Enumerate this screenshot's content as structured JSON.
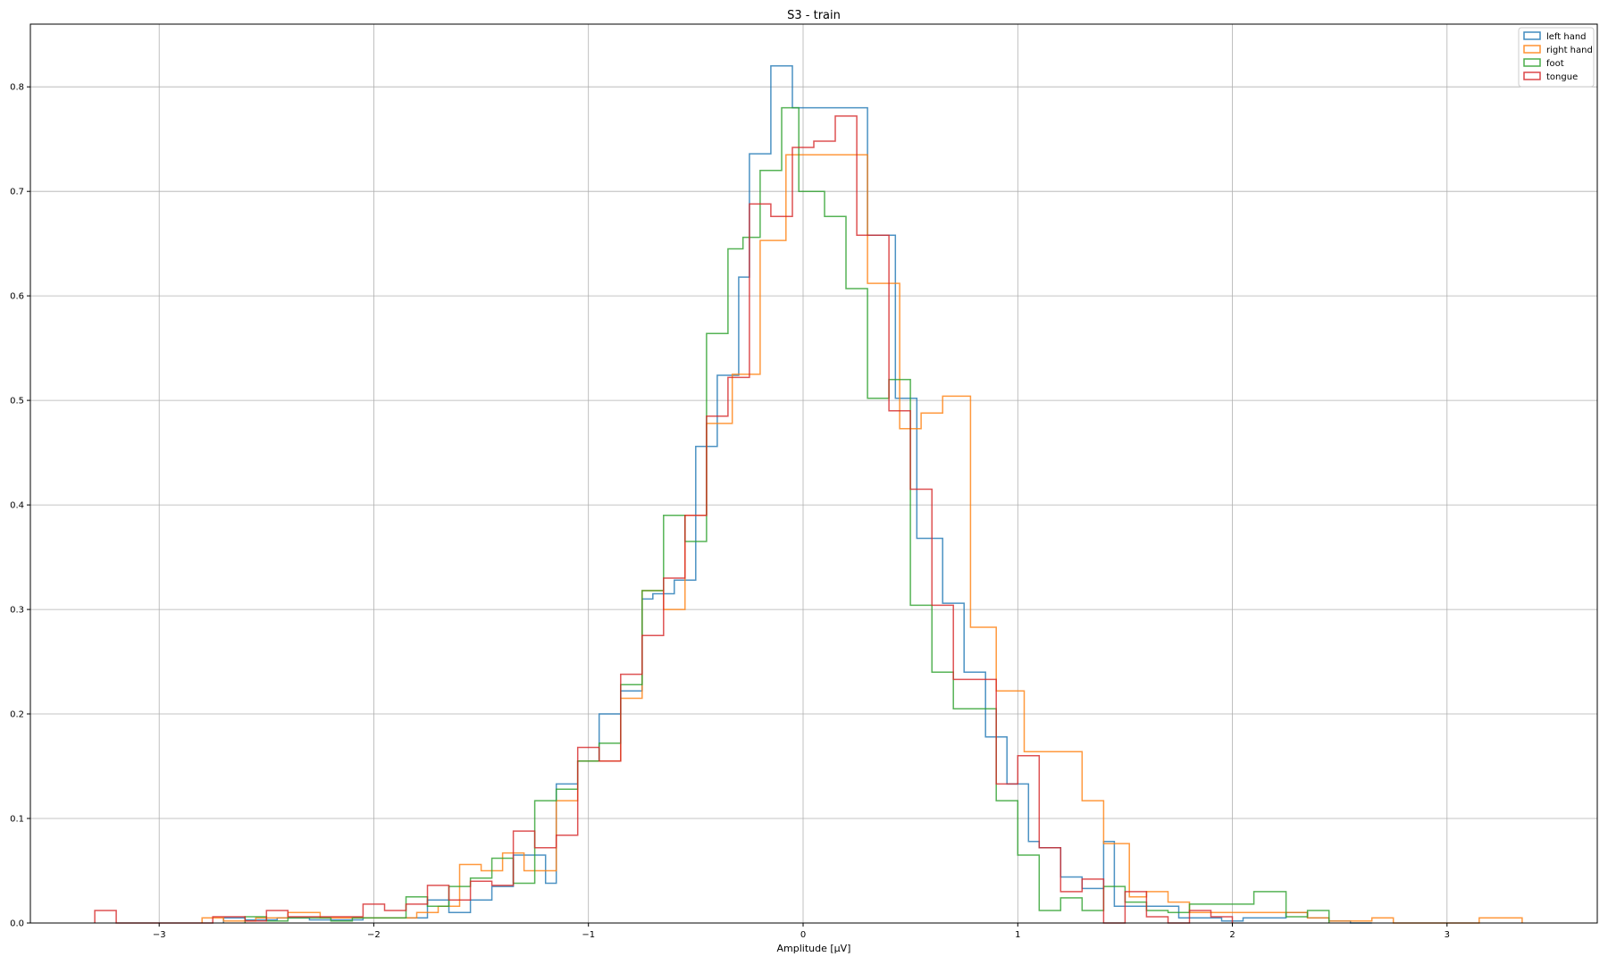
{
  "chart_data": {
    "type": "histogram",
    "title": "S3 - train",
    "xlabel": "Amplitude [μV]",
    "ylabel": "",
    "xlim": [
      -3.6,
      3.7
    ],
    "ylim": [
      0,
      0.86
    ],
    "xticks": [
      -3,
      -2,
      -1,
      0,
      1,
      2,
      3
    ],
    "xtick_labels": [
      "−3",
      "−2",
      "−1",
      "0",
      "1",
      "2",
      "3"
    ],
    "yticks": [
      0.0,
      0.1,
      0.2,
      0.3,
      0.4,
      0.5,
      0.6,
      0.7,
      0.8
    ],
    "ytick_labels": [
      "0.0",
      "0.1",
      "0.2",
      "0.3",
      "0.4",
      "0.5",
      "0.6",
      "0.7",
      "0.8"
    ],
    "grid": true,
    "legend_position": "top-right",
    "series": [
      {
        "name": "left hand",
        "color": "#1f77b4",
        "edges": [
          -2.7,
          -2.6,
          -2.45,
          -2.3,
          -2.2,
          -2.05,
          -1.9,
          -1.75,
          -1.65,
          -1.55,
          -1.45,
          -1.35,
          -1.3,
          -1.2,
          -1.15,
          -1.05,
          -0.95,
          -0.85,
          -0.75,
          -0.7,
          -0.6,
          -0.5,
          -0.4,
          -0.3,
          -0.25,
          -0.15,
          -0.05,
          0.08,
          0.3,
          0.43,
          0.53,
          0.65,
          0.75,
          0.85,
          0.95,
          1.05,
          1.1,
          1.2,
          1.3,
          1.4,
          1.45,
          1.55,
          1.65,
          1.75,
          1.85,
          1.95,
          2.05,
          2.15,
          2.25,
          2.35,
          2.45,
          2.55,
          2.65
        ],
        "values": [
          0.005,
          0.003,
          0.005,
          0.003,
          0.003,
          0.005,
          0.005,
          0.022,
          0.01,
          0.022,
          0.035,
          0.065,
          0.065,
          0.038,
          0.133,
          0.155,
          0.2,
          0.222,
          0.31,
          0.315,
          0.328,
          0.456,
          0.524,
          0.618,
          0.736,
          0.82,
          0.78,
          0.78,
          0.658,
          0.502,
          0.368,
          0.306,
          0.24,
          0.178,
          0.133,
          0.078,
          0.072,
          0.044,
          0.033,
          0.078,
          0.016,
          0.016,
          0.016,
          0.005,
          0.005,
          0.002,
          0.005,
          0.005,
          0.01,
          0.005,
          0.002,
          0.0
        ]
      },
      {
        "name": "right hand",
        "color": "#ff7f0e",
        "edges": [
          -2.8,
          -2.7,
          -2.55,
          -2.4,
          -2.25,
          -2.1,
          -1.95,
          -1.8,
          -1.7,
          -1.6,
          -1.5,
          -1.4,
          -1.3,
          -1.15,
          -1.05,
          -0.95,
          -0.85,
          -0.75,
          -0.65,
          -0.55,
          -0.45,
          -0.33,
          -0.2,
          -0.08,
          0.03,
          0.3,
          0.45,
          0.55,
          0.65,
          0.78,
          0.9,
          1.03,
          1.3,
          1.4,
          1.52,
          1.6,
          1.7,
          1.8,
          1.92,
          2.02,
          2.35,
          2.45,
          2.65,
          2.75,
          3.15,
          3.35
        ],
        "values": [
          0.005,
          0.002,
          0.005,
          0.01,
          0.005,
          0.005,
          0.005,
          0.01,
          0.016,
          0.056,
          0.05,
          0.067,
          0.05,
          0.117,
          0.155,
          0.155,
          0.215,
          0.318,
          0.3,
          0.39,
          0.478,
          0.525,
          0.653,
          0.735,
          0.735,
          0.612,
          0.473,
          0.488,
          0.504,
          0.283,
          0.222,
          0.164,
          0.117,
          0.076,
          0.025,
          0.03,
          0.02,
          0.01,
          0.01,
          0.01,
          0.005,
          0.002,
          0.005,
          0.0,
          0.005
        ]
      },
      {
        "name": "foot",
        "color": "#2ca02c",
        "edges": [
          -2.6,
          -2.5,
          -2.4,
          -2.2,
          -2.1,
          -1.95,
          -1.85,
          -1.75,
          -1.65,
          -1.55,
          -1.45,
          -1.35,
          -1.25,
          -1.15,
          -1.05,
          -0.95,
          -0.85,
          -0.75,
          -0.65,
          -0.55,
          -0.45,
          -0.35,
          -0.28,
          -0.2,
          -0.1,
          -0.02,
          0.1,
          0.2,
          0.3,
          0.4,
          0.5,
          0.6,
          0.7,
          0.8,
          0.9,
          1.0,
          1.1,
          1.2,
          1.3,
          1.4,
          1.5,
          1.6,
          1.7,
          1.8,
          1.9,
          2.1,
          2.25,
          2.35,
          2.45
        ],
        "values": [
          0.006,
          0.002,
          0.005,
          0.002,
          0.005,
          0.005,
          0.025,
          0.016,
          0.035,
          0.043,
          0.062,
          0.038,
          0.117,
          0.128,
          0.155,
          0.172,
          0.228,
          0.318,
          0.39,
          0.365,
          0.564,
          0.645,
          0.656,
          0.72,
          0.78,
          0.7,
          0.676,
          0.607,
          0.502,
          0.52,
          0.304,
          0.24,
          0.205,
          0.205,
          0.117,
          0.065,
          0.012,
          0.024,
          0.012,
          0.035,
          0.02,
          0.012,
          0.01,
          0.018,
          0.018,
          0.03,
          0.006,
          0.012
        ]
      },
      {
        "name": "tongue",
        "color": "#d62728",
        "edges": [
          -3.3,
          -3.2,
          -2.9,
          -2.75,
          -2.6,
          -2.5,
          -2.4,
          -2.3,
          -2.15,
          -2.05,
          -1.95,
          -1.85,
          -1.75,
          -1.65,
          -1.55,
          -1.45,
          -1.35,
          -1.25,
          -1.15,
          -1.05,
          -0.95,
          -0.85,
          -0.75,
          -0.65,
          -0.55,
          -0.45,
          -0.35,
          -0.25,
          -0.15,
          -0.05,
          0.05,
          0.15,
          0.25,
          0.4,
          0.5,
          0.6,
          0.7,
          0.8,
          0.9,
          1.0,
          1.1,
          1.2,
          1.3,
          1.4,
          1.5,
          1.6,
          1.7,
          1.8,
          1.9,
          2.0
        ],
        "values": [
          0.012,
          0.0,
          0.0,
          0.006,
          0.002,
          0.012,
          0.006,
          0.006,
          0.006,
          0.018,
          0.012,
          0.018,
          0.036,
          0.022,
          0.04,
          0.036,
          0.088,
          0.072,
          0.084,
          0.168,
          0.155,
          0.238,
          0.275,
          0.33,
          0.39,
          0.485,
          0.522,
          0.688,
          0.676,
          0.742,
          0.748,
          0.772,
          0.658,
          0.49,
          0.415,
          0.304,
          0.233,
          0.233,
          0.133,
          0.16,
          0.072,
          0.03,
          0.042,
          0.0,
          0.03,
          0.006,
          0.0,
          0.012,
          0.006
        ]
      }
    ]
  }
}
